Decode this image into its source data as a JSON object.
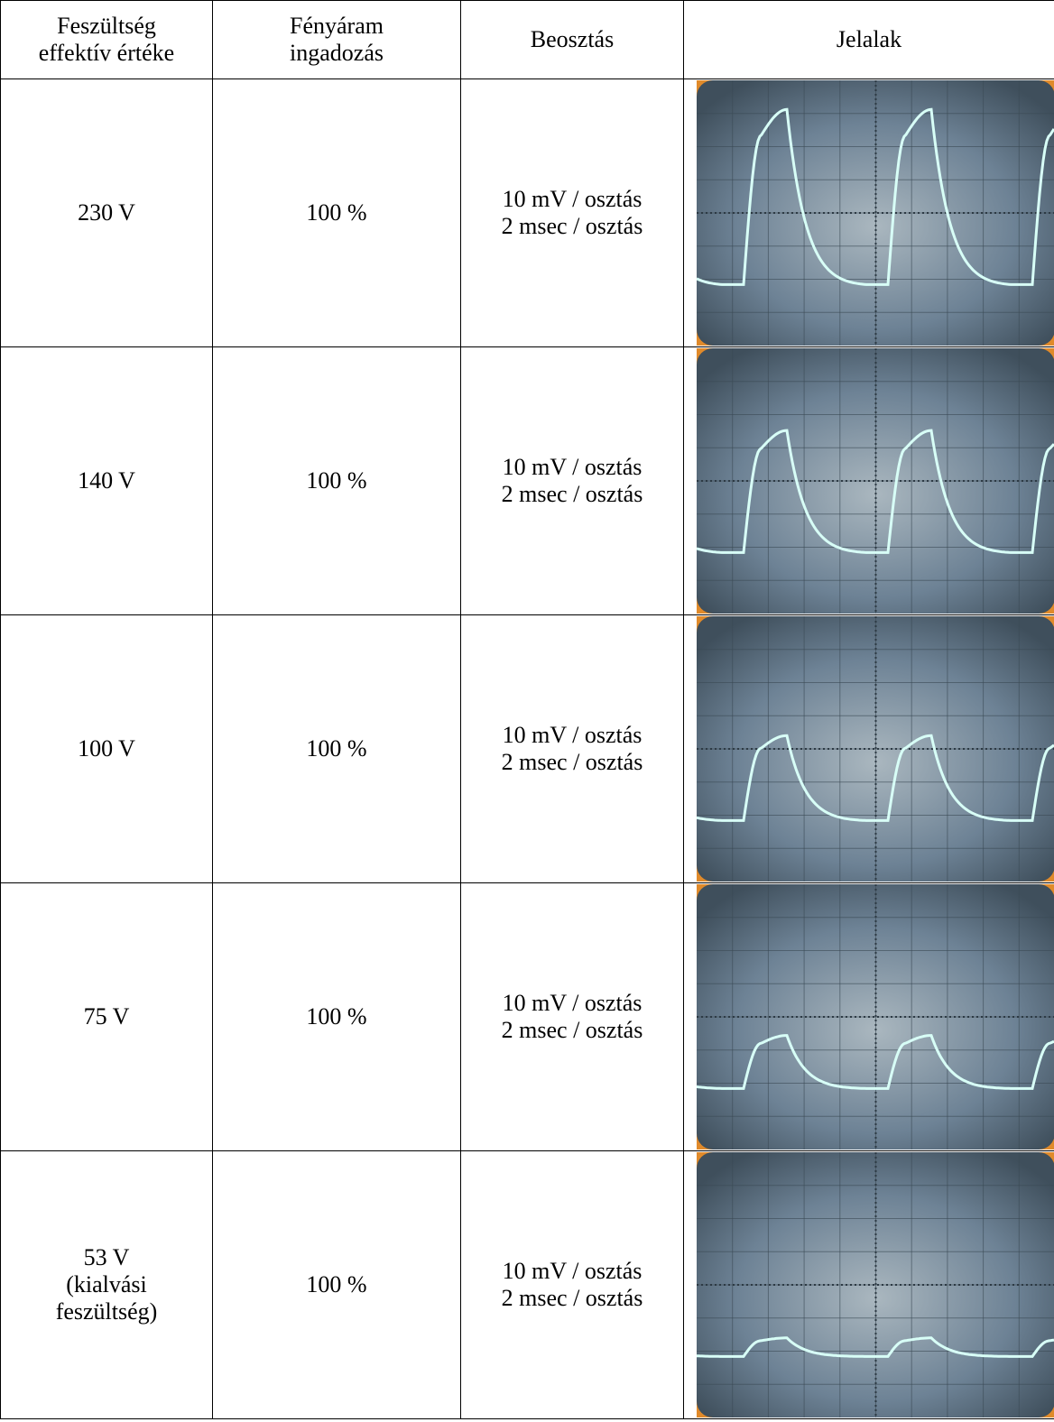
{
  "table": {
    "header": [
      [
        "Feszültség",
        "effektív értéke"
      ],
      [
        "Fényáram",
        "ingadozás"
      ],
      [
        "Beosztás"
      ],
      [
        "Jelalak"
      ]
    ],
    "rows": [
      {
        "voltage": [
          "230 V"
        ],
        "flicker": "100 %",
        "scale": [
          "10 mV / osztás",
          "2 msec / osztás"
        ]
      },
      {
        "voltage": [
          "140 V"
        ],
        "flicker": "100 %",
        "scale": [
          "10 mV / osztás",
          "2 msec / osztás"
        ]
      },
      {
        "voltage": [
          "100 V"
        ],
        "flicker": "100 %",
        "scale": [
          "10 mV / osztás",
          "2 msec / osztás"
        ]
      },
      {
        "voltage": [
          "75 V"
        ],
        "flicker": "100 %",
        "scale": [
          "10 mV / osztás",
          "2 msec / osztás"
        ]
      },
      {
        "voltage": [
          "53 V",
          "(kialvási",
          "feszültség)"
        ],
        "flicker": "100 %",
        "scale": [
          "10 mV / osztás",
          "2 msec / osztás"
        ]
      }
    ]
  }
}
